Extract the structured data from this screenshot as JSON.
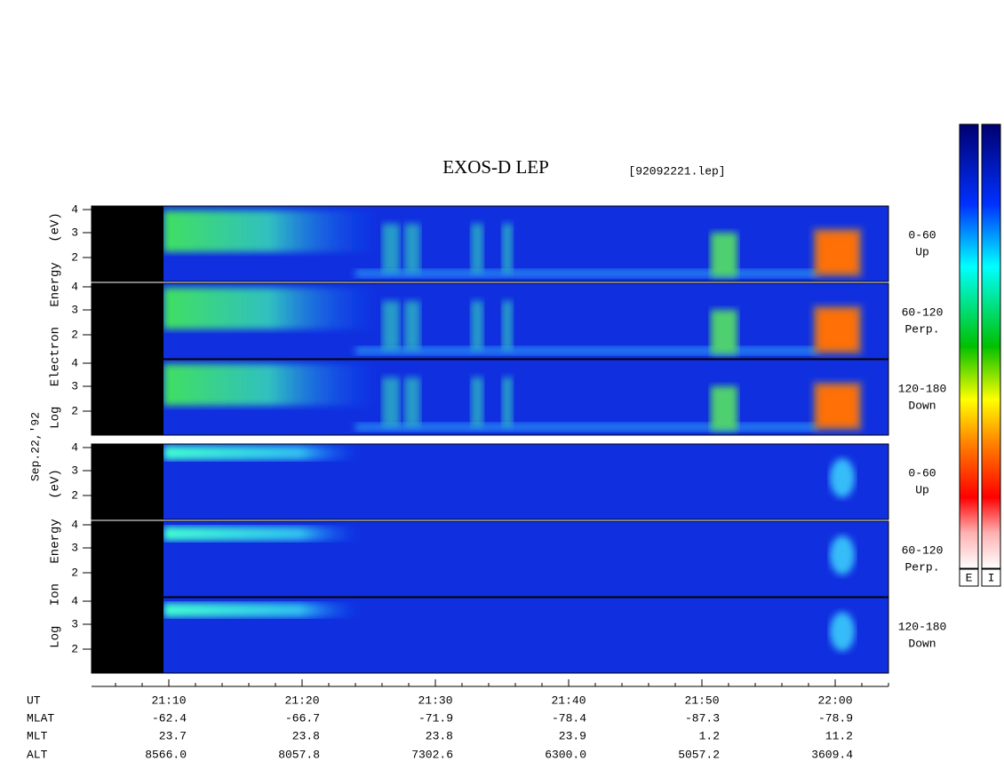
{
  "title": "EXOS-D LEP",
  "file": "[92092221.lep]",
  "date": "Sep.22,'92",
  "groups": [
    {
      "label": "Log Electron Energy (eV)",
      "panels": [
        {
          "yticks": [
            "4",
            "3",
            "2"
          ],
          "angle": "0-60",
          "direction": "Up"
        },
        {
          "yticks": [
            "4",
            "3",
            "2"
          ],
          "angle": "60-120",
          "direction": "Perp."
        },
        {
          "yticks": [
            "4",
            "3",
            "2"
          ],
          "angle": "120-180",
          "direction": "Down"
        }
      ]
    },
    {
      "label": "Log Ion Energy (eV)",
      "panels": [
        {
          "yticks": [
            "4",
            "3",
            "2"
          ],
          "angle": "0-60",
          "direction": "Up"
        },
        {
          "yticks": [
            "4",
            "3",
            "2"
          ],
          "angle": "60-120",
          "direction": "Perp."
        },
        {
          "yticks": [
            "4",
            "3",
            "2"
          ],
          "angle": "120-180",
          "direction": "Down"
        }
      ]
    }
  ],
  "axis_rows": [
    {
      "label": "UT",
      "values": [
        "21:10",
        "21:20",
        "21:30",
        "21:40",
        "21:50",
        "22:00"
      ]
    },
    {
      "label": "MLAT",
      "values": [
        "-62.4",
        "-66.7",
        "-71.9",
        "-78.4",
        "-87.3",
        "-78.9"
      ]
    },
    {
      "label": "MLT",
      "values": [
        "23.7",
        "23.8",
        "23.8",
        "23.9",
        "1.2",
        "11.2"
      ]
    },
    {
      "label": "ALT",
      "values": [
        "8566.0",
        "8057.8",
        "7302.6",
        "6300.0",
        "5057.2",
        "3609.4"
      ]
    }
  ],
  "colorbars": [
    "E",
    "I"
  ]
}
